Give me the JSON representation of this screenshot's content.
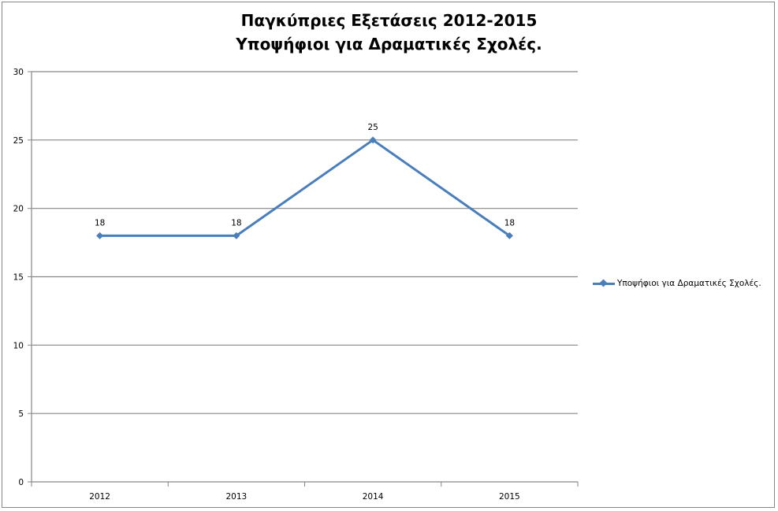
{
  "chart_data": {
    "type": "line",
    "title": [
      "Παγκύπριες Εξετάσεις 2012-2015",
      "Υποψήφιοι για Δραματικές Σχολές."
    ],
    "categories": [
      "2012",
      "2013",
      "2014",
      "2015"
    ],
    "series": [
      {
        "name": "Υποψήφιοι για Δραματικές Σχολές.",
        "values": [
          18,
          18,
          25,
          18
        ],
        "color": "#4a7ebb",
        "marker": "diamond",
        "data_labels": true
      }
    ],
    "ylim": [
      0,
      30
    ],
    "yticks": [
      0,
      5,
      10,
      15,
      20,
      25,
      30
    ],
    "xlabel": "",
    "ylabel": "",
    "grid": "horizontal",
    "legend": "right"
  }
}
